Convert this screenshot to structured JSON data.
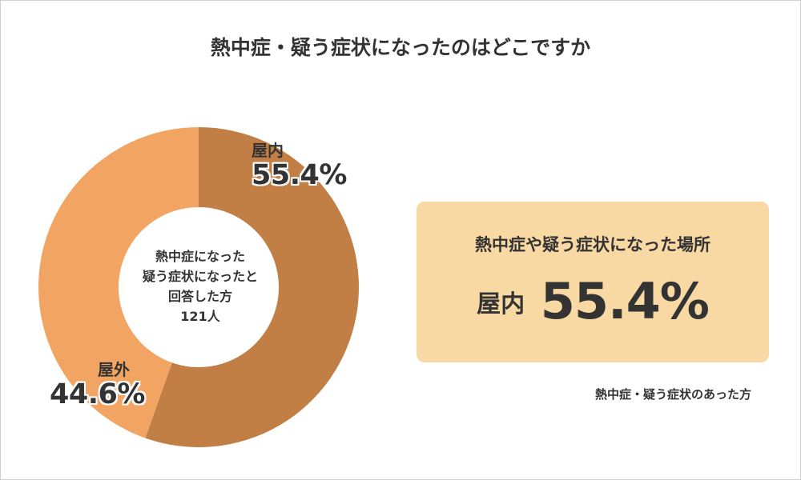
{
  "title": "熱中症・疑う症状になったのはどこですか",
  "chart_data": {
    "type": "pie",
    "title": "熱中症・疑う症状になったのはどこですか",
    "donut": true,
    "center_text": [
      "熱中症になった",
      "疑う症状になったと",
      "回答した方",
      "121人"
    ],
    "slices": [
      {
        "label": "屋内",
        "value": 55.4,
        "display": "55.4%",
        "color": "#c17f45"
      },
      {
        "label": "屋外",
        "value": 44.6,
        "display": "44.6%",
        "color": "#f2a563"
      }
    ]
  },
  "highlight": {
    "title": "熱中症や疑う症状になった場所",
    "category": "屋内",
    "value": "55.4%",
    "background": "#f8d9a3"
  },
  "note": "熱中症・疑う症状のあった方"
}
